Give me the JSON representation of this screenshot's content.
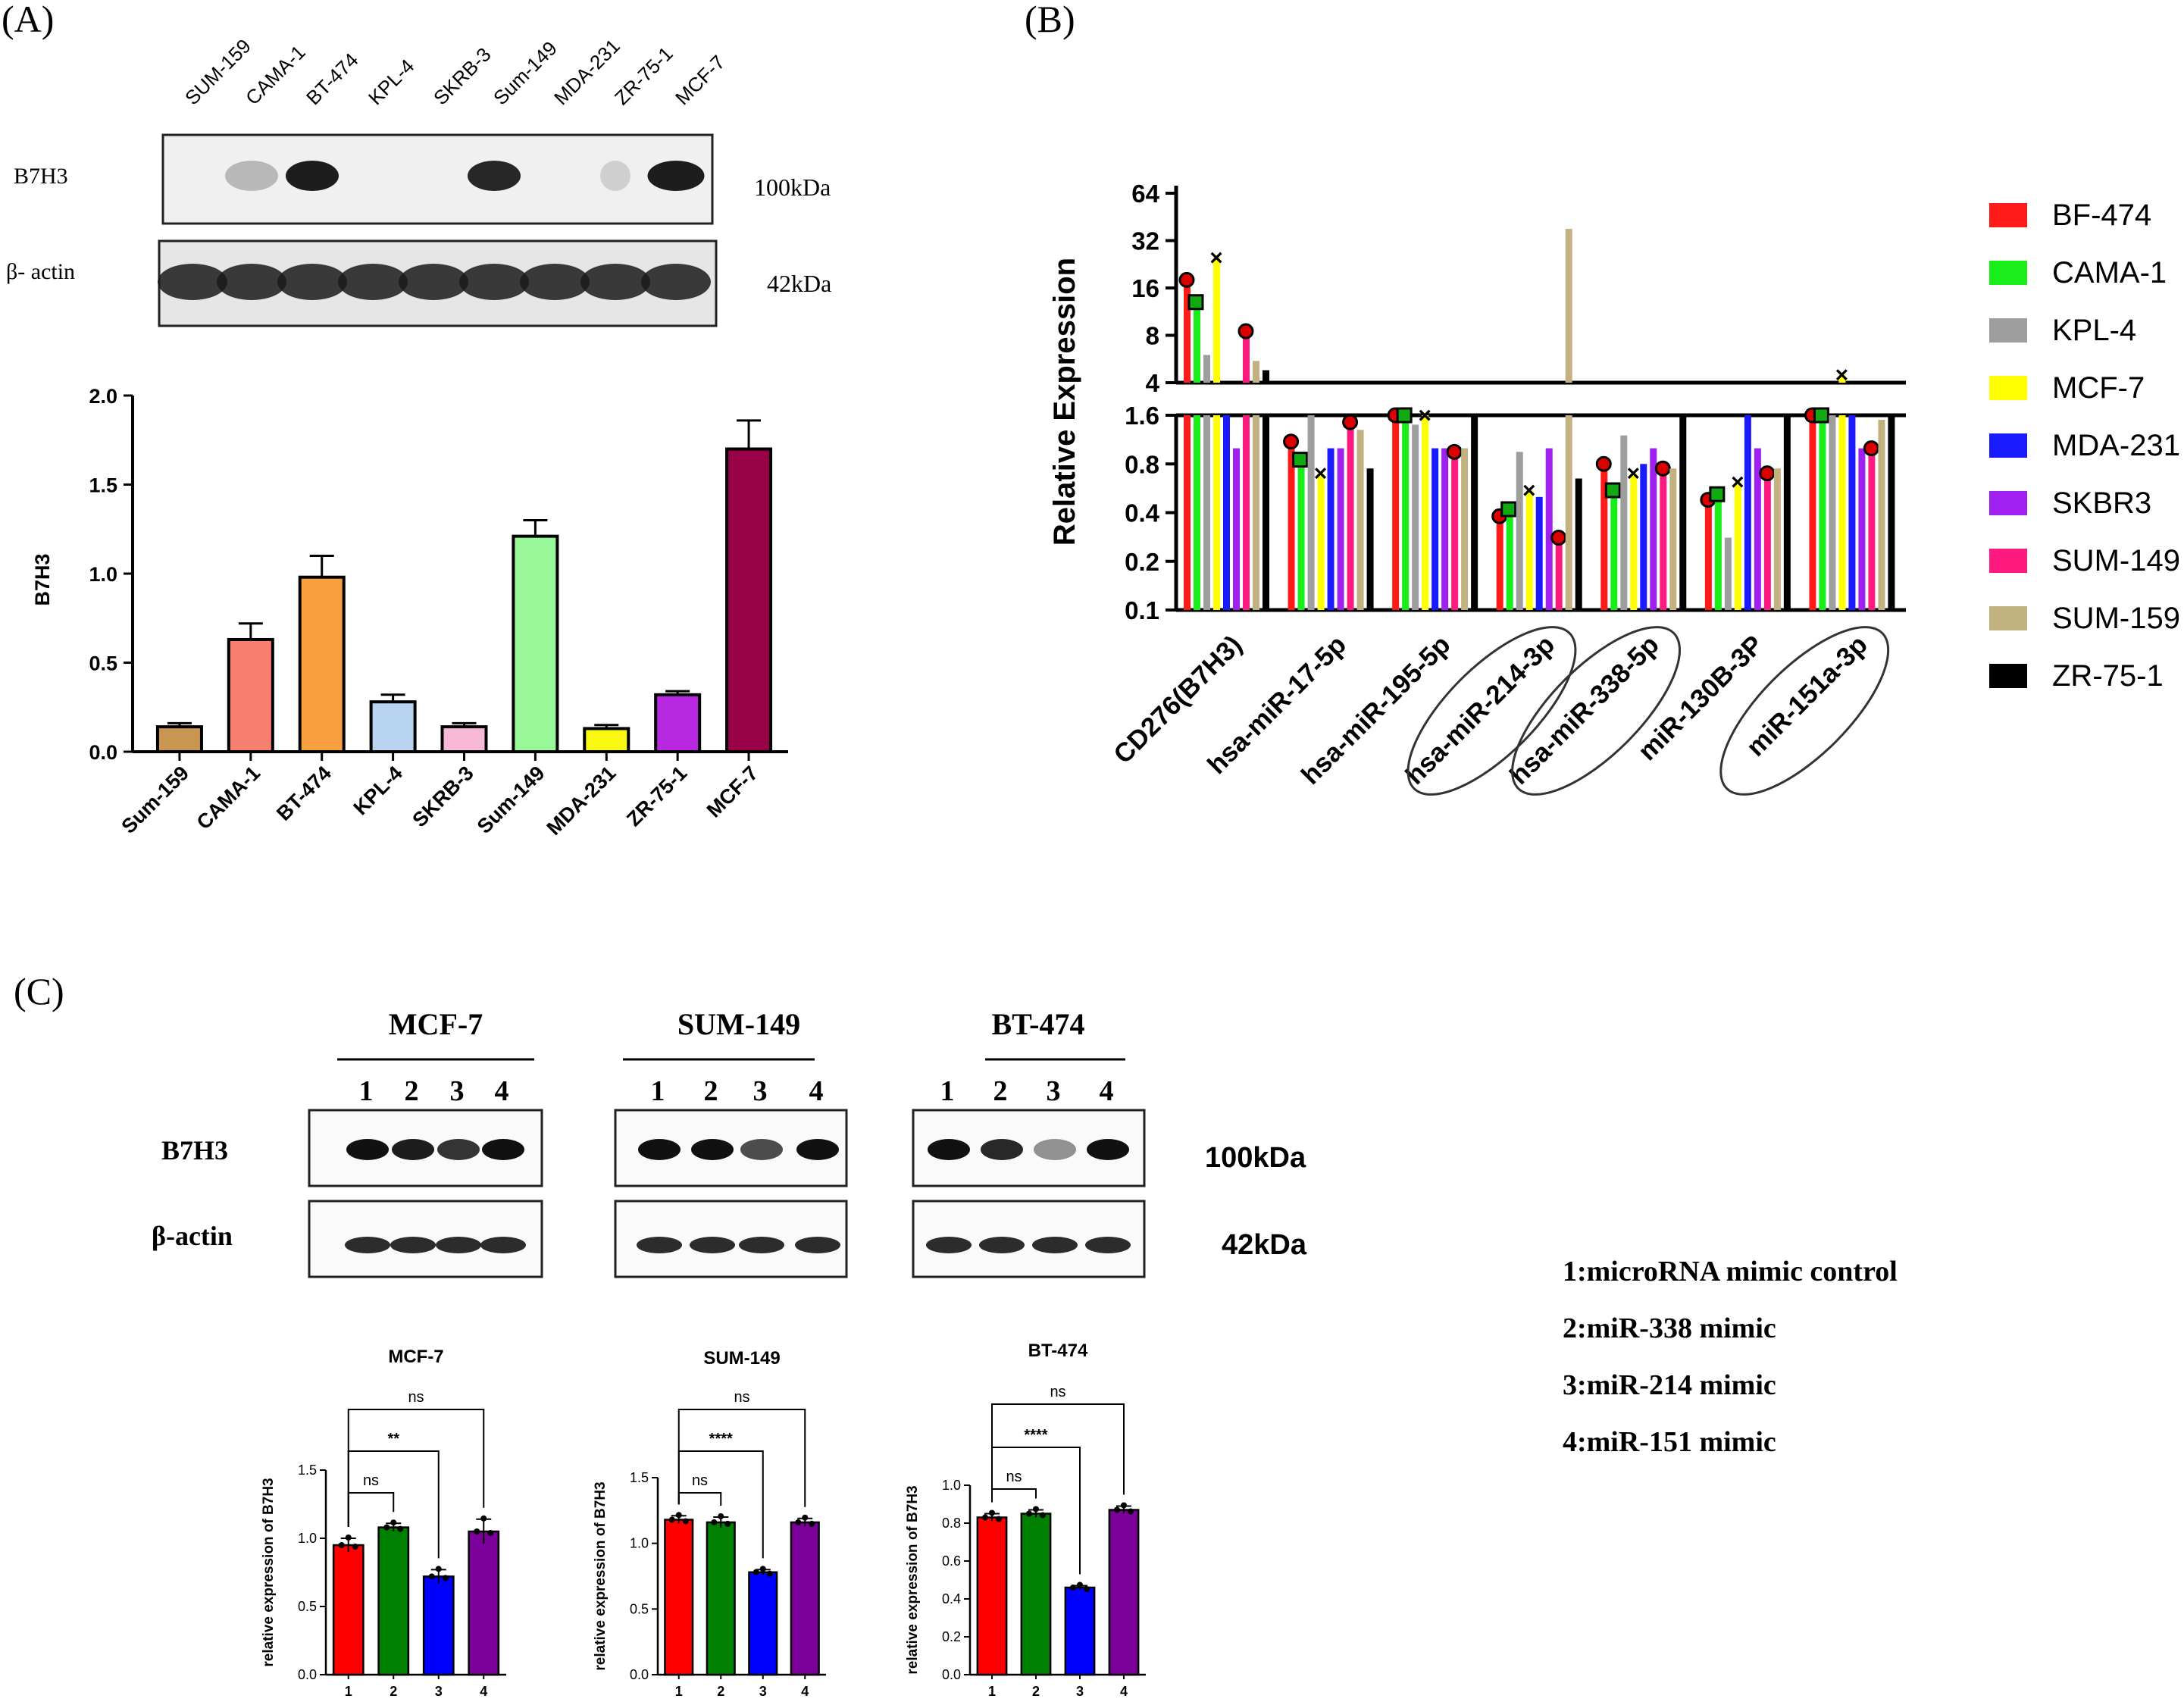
{
  "panels": {
    "a": "(A)",
    "b": "(B)",
    "c": "(C)"
  },
  "panelA": {
    "blot_lanes": [
      "SUM-159",
      "CAMA-1",
      "BT-474",
      "KPL-4",
      "SKRB-3",
      "Sum-149",
      "MDA-231",
      "ZR-75-1",
      "MCF-7"
    ],
    "row_labels": [
      "B7H3",
      "β- actin"
    ],
    "kda_labels": [
      "100kDa",
      "42kDa"
    ]
  },
  "panelB": {
    "legend": [
      {
        "name": "BF-474",
        "color": "#ff1a1a"
      },
      {
        "name": "CAMA-1",
        "color": "#1aee1a"
      },
      {
        "name": "KPL-4",
        "color": "#9e9e9e"
      },
      {
        "name": "MCF-7",
        "color": "#ffff00"
      },
      {
        "name": "MDA-231",
        "color": "#1a1aff"
      },
      {
        "name": "SKBR3",
        "color": "#a020f0"
      },
      {
        "name": "SUM-149",
        "color": "#ff1a80"
      },
      {
        "name": "SUM-159",
        "color": "#c2b280"
      },
      {
        "name": "ZR-75-1",
        "color": "#000000"
      }
    ]
  },
  "panelC": {
    "groups": [
      {
        "title": "MCF-7",
        "lanes": [
          "1",
          "2",
          "3",
          "4"
        ]
      },
      {
        "title": "SUM-149",
        "lanes": [
          "1",
          "2",
          "3",
          "4"
        ]
      },
      {
        "title": "BT-474",
        "lanes": [
          "1",
          "2",
          "3",
          "4"
        ]
      }
    ],
    "row_labels": [
      "B7H3",
      "β-actin"
    ],
    "kda_labels": [
      "100kDa",
      "42kDa"
    ],
    "key": [
      "1:microRNA mimic control",
      "2:miR-338 mimic",
      "3:miR-214 mimic",
      "4:miR-151 mimic"
    ],
    "bar_colors": [
      "#ff0000",
      "#008000",
      "#0000ff",
      "#7b0099"
    ]
  },
  "chart_data": [
    {
      "id": "A",
      "type": "bar",
      "title": "",
      "xlabel": "",
      "ylabel": "B7H3",
      "ylim": [
        0,
        2.0
      ],
      "yticks": [
        "0.0",
        "0.5",
        "1.0",
        "1.5",
        "2.0"
      ],
      "categories": [
        "Sum-159",
        "CAMA-1",
        "BT-474",
        "KPL-4",
        "SKRB-3",
        "Sum-149",
        "MDA-231",
        "ZR-75-1",
        "MCF-7"
      ],
      "values": [
        0.14,
        0.63,
        0.98,
        0.28,
        0.14,
        1.21,
        0.13,
        0.32,
        1.7
      ],
      "errors": [
        0.02,
        0.09,
        0.12,
        0.04,
        0.02,
        0.09,
        0.02,
        0.02,
        0.16
      ],
      "colors": [
        "#c89650",
        "#f88070",
        "#f8a040",
        "#b8d4f0",
        "#f8b8d8",
        "#98f898",
        "#f8f810",
        "#b828e0",
        "#980048"
      ]
    },
    {
      "id": "B",
      "type": "bar",
      "title": "",
      "xlabel": "",
      "ylabel": "Relative Expression",
      "yscale": "log2-broken",
      "yticks_upper": [
        "4",
        "8",
        "16",
        "32",
        "64"
      ],
      "yticks_lower": [
        "0.1",
        "0.2",
        "0.4",
        "0.8",
        "1.6"
      ],
      "categories": [
        "CD276(B7H3)",
        "hsa-miR-17-5p",
        "hsa-miR-195-5p",
        "hsa-miR-214-3p",
        "hsa-miR-338-5p",
        "miR-130B-3P",
        "miR-151a-3p"
      ],
      "circled": [
        "hsa-miR-214-3p",
        "hsa-miR-338-5p",
        "miR-151a-3p"
      ],
      "series": [
        {
          "name": "BF-474",
          "values": [
            18,
            1.1,
            2.5,
            0.38,
            0.8,
            0.48,
            2.8
          ]
        },
        {
          "name": "CAMA-1",
          "values": [
            13,
            0.85,
            2.2,
            0.42,
            0.55,
            0.52,
            2.4
          ]
        },
        {
          "name": "KPL-4",
          "values": [
            6,
            1.6,
            1.4,
            0.95,
            1.2,
            0.28,
            4.0
          ]
        },
        {
          "name": "MCF-7",
          "values": [
            25,
            0.7,
            2.8,
            0.55,
            0.7,
            0.62,
            4.5
          ]
        },
        {
          "name": "MDA-231",
          "values": [
            3.2,
            1.0,
            1.0,
            0.5,
            0.8,
            1.8,
            2.2
          ]
        },
        {
          "name": "SKBR3",
          "values": [
            1.0,
            1.0,
            1.0,
            1.0,
            1.0,
            1.0,
            1.0
          ]
        },
        {
          "name": "SUM-149",
          "values": [
            8.5,
            1.45,
            0.95,
            0.28,
            0.75,
            0.7,
            1.0
          ]
        },
        {
          "name": "SUM-159",
          "values": [
            5.5,
            1.3,
            1.0,
            38,
            0.75,
            0.75,
            1.5
          ]
        },
        {
          "name": "ZR-75-1",
          "values": [
            4.8,
            0.75,
            3.0,
            0.65,
            1.6,
            2.0,
            3.8
          ]
        }
      ]
    },
    {
      "id": "C1",
      "type": "bar",
      "title": "MCF-7",
      "ylabel": "relative expression of B7H3",
      "ylim": [
        0,
        1.5
      ],
      "yticks": [
        "0.0",
        "0.5",
        "1.0",
        "1.5"
      ],
      "categories": [
        "1",
        "2",
        "3",
        "4"
      ],
      "values": [
        0.95,
        1.08,
        0.72,
        1.05
      ],
      "errors": [
        0.05,
        0.03,
        0.05,
        0.09
      ],
      "significance": [
        {
          "pair": [
            1,
            2
          ],
          "label": "ns"
        },
        {
          "pair": [
            1,
            3
          ],
          "label": "**"
        },
        {
          "pair": [
            1,
            4
          ],
          "label": "ns"
        }
      ]
    },
    {
      "id": "C2",
      "type": "bar",
      "title": "SUM-149",
      "ylabel": "relative expression of B7H3",
      "ylim": [
        0,
        1.5
      ],
      "yticks": [
        "0.0",
        "0.5",
        "1.0",
        "1.5"
      ],
      "categories": [
        "1",
        "2",
        "3",
        "4"
      ],
      "values": [
        1.18,
        1.16,
        0.78,
        1.16
      ],
      "errors": [
        0.03,
        0.04,
        0.02,
        0.03
      ],
      "significance": [
        {
          "pair": [
            1,
            2
          ],
          "label": "ns"
        },
        {
          "pair": [
            1,
            3
          ],
          "label": "****"
        },
        {
          "pair": [
            1,
            4
          ],
          "label": "ns"
        }
      ]
    },
    {
      "id": "C3",
      "type": "bar",
      "title": "BT-474",
      "ylabel": "relative expression of B7H3",
      "ylim": [
        0,
        1.0
      ],
      "yticks": [
        "0.0",
        "0.2",
        "0.4",
        "0.6",
        "0.8",
        "1.0"
      ],
      "categories": [
        "1",
        "2",
        "3",
        "4"
      ],
      "values": [
        0.83,
        0.85,
        0.46,
        0.87
      ],
      "errors": [
        0.02,
        0.02,
        0.01,
        0.02
      ],
      "significance": [
        {
          "pair": [
            1,
            2
          ],
          "label": "ns"
        },
        {
          "pair": [
            1,
            3
          ],
          "label": "****"
        },
        {
          "pair": [
            1,
            4
          ],
          "label": "ns"
        }
      ]
    }
  ]
}
